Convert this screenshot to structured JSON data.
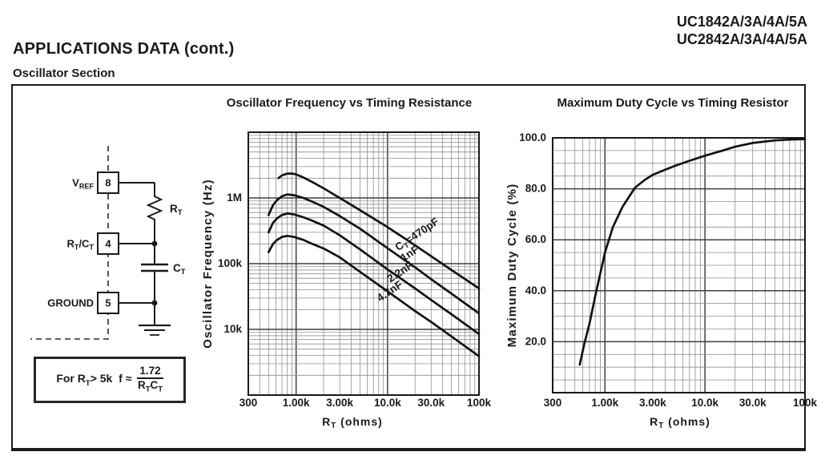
{
  "header": {
    "part_numbers": [
      "UC1842A/3A/4A/5A",
      "UC2842A/3A/4A/5A"
    ],
    "section_title": "APPLICATIONS DATA (cont.)",
    "subsection_title": "Oscillator Section"
  },
  "colors": {
    "ink": "#1a1a1a",
    "grid_minor": "#8f8f8f",
    "grid_major": "#3f3f3f",
    "curve": "#121212"
  },
  "circuit": {
    "pins": [
      {
        "number": "8",
        "label_parts": [
          {
            "t": "V"
          },
          {
            "t": "REF",
            "sub": true
          }
        ]
      },
      {
        "number": "4",
        "label_parts": [
          {
            "t": "R"
          },
          {
            "t": "T",
            "sub": true
          },
          {
            "t": "/C"
          },
          {
            "t": "T",
            "sub": true
          }
        ]
      },
      {
        "number": "5",
        "label_parts": [
          {
            "t": "GROUND"
          }
        ]
      }
    ],
    "resistor_label_parts": [
      {
        "t": "R"
      },
      {
        "t": "T",
        "sub": true
      }
    ],
    "capacitor_label_parts": [
      {
        "t": "C"
      },
      {
        "t": "T",
        "sub": true
      }
    ]
  },
  "formula": {
    "p1": "For R",
    "p1s": "T",
    "p2": "> 5k",
    "p3": "f",
    "p4": "≈",
    "num": "1.72",
    "d1": "R",
    "d1s": "T",
    "d2": "C",
    "d2s": "T"
  },
  "chart_data": [
    {
      "type": "line",
      "title": "Oscillator Frequency vs Timing Resistance",
      "xlabel": "RT (ohms)",
      "xlabel_parts": [
        {
          "t": "R"
        },
        {
          "t": "T",
          "sub": true
        },
        {
          "t": " (ohms)"
        }
      ],
      "ylabel": "Oscillator Frequency (Hz)",
      "x_scale": "log",
      "y_scale": "log",
      "xlim": [
        300,
        100000
      ],
      "ylim": [
        1000,
        10000000
      ],
      "x_ticks": [
        {
          "v": 300,
          "label": "300"
        },
        {
          "v": 1000,
          "label": "1.00k"
        },
        {
          "v": 3000,
          "label": "3.00k"
        },
        {
          "v": 10000,
          "label": "10.0k"
        },
        {
          "v": 30000,
          "label": "30.0k"
        },
        {
          "v": 100000,
          "label": "100k"
        }
      ],
      "y_ticks": [
        {
          "v": 1000000,
          "label": "1M"
        },
        {
          "v": 100000,
          "label": "100k"
        },
        {
          "v": 10000,
          "label": "10k"
        }
      ],
      "grid": "log minor + decade major, both axes",
      "legend": "inline rotated curve labels",
      "series": [
        {
          "name": "CT=470pF",
          "name_parts": [
            {
              "t": "C"
            },
            {
              "t": "T",
              "sub": true
            },
            {
              "t": "=470pF"
            }
          ],
          "points": [
            [
              640,
              2000000
            ],
            [
              700,
              2200000
            ],
            [
              800,
              2350000
            ],
            [
              900,
              2350000
            ],
            [
              1000,
              2280000
            ],
            [
              1200,
              2050000
            ],
            [
              1500,
              1750000
            ],
            [
              2000,
              1400000
            ],
            [
              3000,
              1000000
            ],
            [
              5000,
              650000
            ],
            [
              10000,
              360000
            ],
            [
              20000,
              190000
            ],
            [
              30000,
              130000
            ],
            [
              50000,
              80000
            ],
            [
              100000,
              42000
            ]
          ]
        },
        {
          "name": "1nF",
          "name_parts": [
            {
              "t": "1nF"
            }
          ],
          "points": [
            [
              500,
              550000
            ],
            [
              560,
              780000
            ],
            [
              620,
              930000
            ],
            [
              700,
              1060000
            ],
            [
              800,
              1130000
            ],
            [
              950,
              1100000
            ],
            [
              1200,
              1000000
            ],
            [
              1500,
              880000
            ],
            [
              2000,
              730000
            ],
            [
              3000,
              530000
            ],
            [
              5000,
              340000
            ],
            [
              10000,
              172000
            ],
            [
              20000,
              88000
            ],
            [
              30000,
              58000
            ],
            [
              50000,
              35000
            ],
            [
              100000,
              17500
            ]
          ]
        },
        {
          "name": "2.2nF",
          "name_parts": [
            {
              "t": "2.2nF"
            }
          ],
          "points": [
            [
              500,
              300000
            ],
            [
              560,
              420000
            ],
            [
              620,
              490000
            ],
            [
              700,
              550000
            ],
            [
              800,
              580000
            ],
            [
              950,
              560000
            ],
            [
              1200,
              510000
            ],
            [
              1500,
              450000
            ],
            [
              2000,
              380000
            ],
            [
              3000,
              270000
            ],
            [
              5000,
              165000
            ],
            [
              10000,
              82000
            ],
            [
              20000,
              42000
            ],
            [
              30000,
              28000
            ],
            [
              50000,
              17000
            ],
            [
              100000,
              8500
            ]
          ]
        },
        {
          "name": "4.7nF",
          "name_parts": [
            {
              "t": "4.7nF"
            }
          ],
          "points": [
            [
              500,
              150000
            ],
            [
              560,
              200000
            ],
            [
              620,
              230000
            ],
            [
              700,
              255000
            ],
            [
              800,
              265000
            ],
            [
              950,
              255000
            ],
            [
              1200,
              230000
            ],
            [
              1500,
              200000
            ],
            [
              2000,
              170000
            ],
            [
              3000,
              125000
            ],
            [
              5000,
              75000
            ],
            [
              10000,
              38000
            ],
            [
              20000,
              19000
            ],
            [
              30000,
              13000
            ],
            [
              50000,
              7800
            ],
            [
              100000,
              3900
            ]
          ]
        }
      ]
    },
    {
      "type": "line",
      "title": "Maximum Duty Cycle vs Timing Resistor",
      "xlabel": "RT (ohms)",
      "xlabel_parts": [
        {
          "t": "R"
        },
        {
          "t": "T",
          "sub": true
        },
        {
          "t": " (ohms)"
        }
      ],
      "ylabel": "Maximum Duty Cycle (%)",
      "x_scale": "log",
      "y_scale": "linear",
      "xlim": [
        300,
        100000
      ],
      "ylim": [
        0,
        100
      ],
      "y_minor_step": 5,
      "y_major_step": 20,
      "x_ticks": [
        {
          "v": 300,
          "label": "300"
        },
        {
          "v": 1000,
          "label": "1.00k"
        },
        {
          "v": 3000,
          "label": "3.00k"
        },
        {
          "v": 10000,
          "label": "10.0k"
        },
        {
          "v": 30000,
          "label": "30.0k"
        },
        {
          "v": 100000,
          "label": "100k"
        }
      ],
      "y_ticks": [
        {
          "v": 100,
          "label": "100.0"
        },
        {
          "v": 80,
          "label": "80.0"
        },
        {
          "v": 60,
          "label": "60.0"
        },
        {
          "v": 40,
          "label": "40.0"
        },
        {
          "v": 20,
          "label": "20.0"
        }
      ],
      "grid": "x log minor + major, y 5% minor / 20% major",
      "series": [
        {
          "points": [
            [
              560,
              11
            ],
            [
              620,
              19
            ],
            [
              700,
              27
            ],
            [
              800,
              38
            ],
            [
              900,
              47
            ],
            [
              1000,
              55
            ],
            [
              1200,
              65
            ],
            [
              1500,
              73
            ],
            [
              2000,
              80.5
            ],
            [
              2500,
              83.5
            ],
            [
              3000,
              85.5
            ],
            [
              4000,
              87.5
            ],
            [
              5000,
              89
            ],
            [
              7000,
              91
            ],
            [
              10000,
              93
            ],
            [
              15000,
              95
            ],
            [
              20000,
              96.5
            ],
            [
              30000,
              98
            ],
            [
              50000,
              99
            ],
            [
              70000,
              99.3
            ],
            [
              100000,
              99.5
            ]
          ]
        }
      ]
    }
  ]
}
